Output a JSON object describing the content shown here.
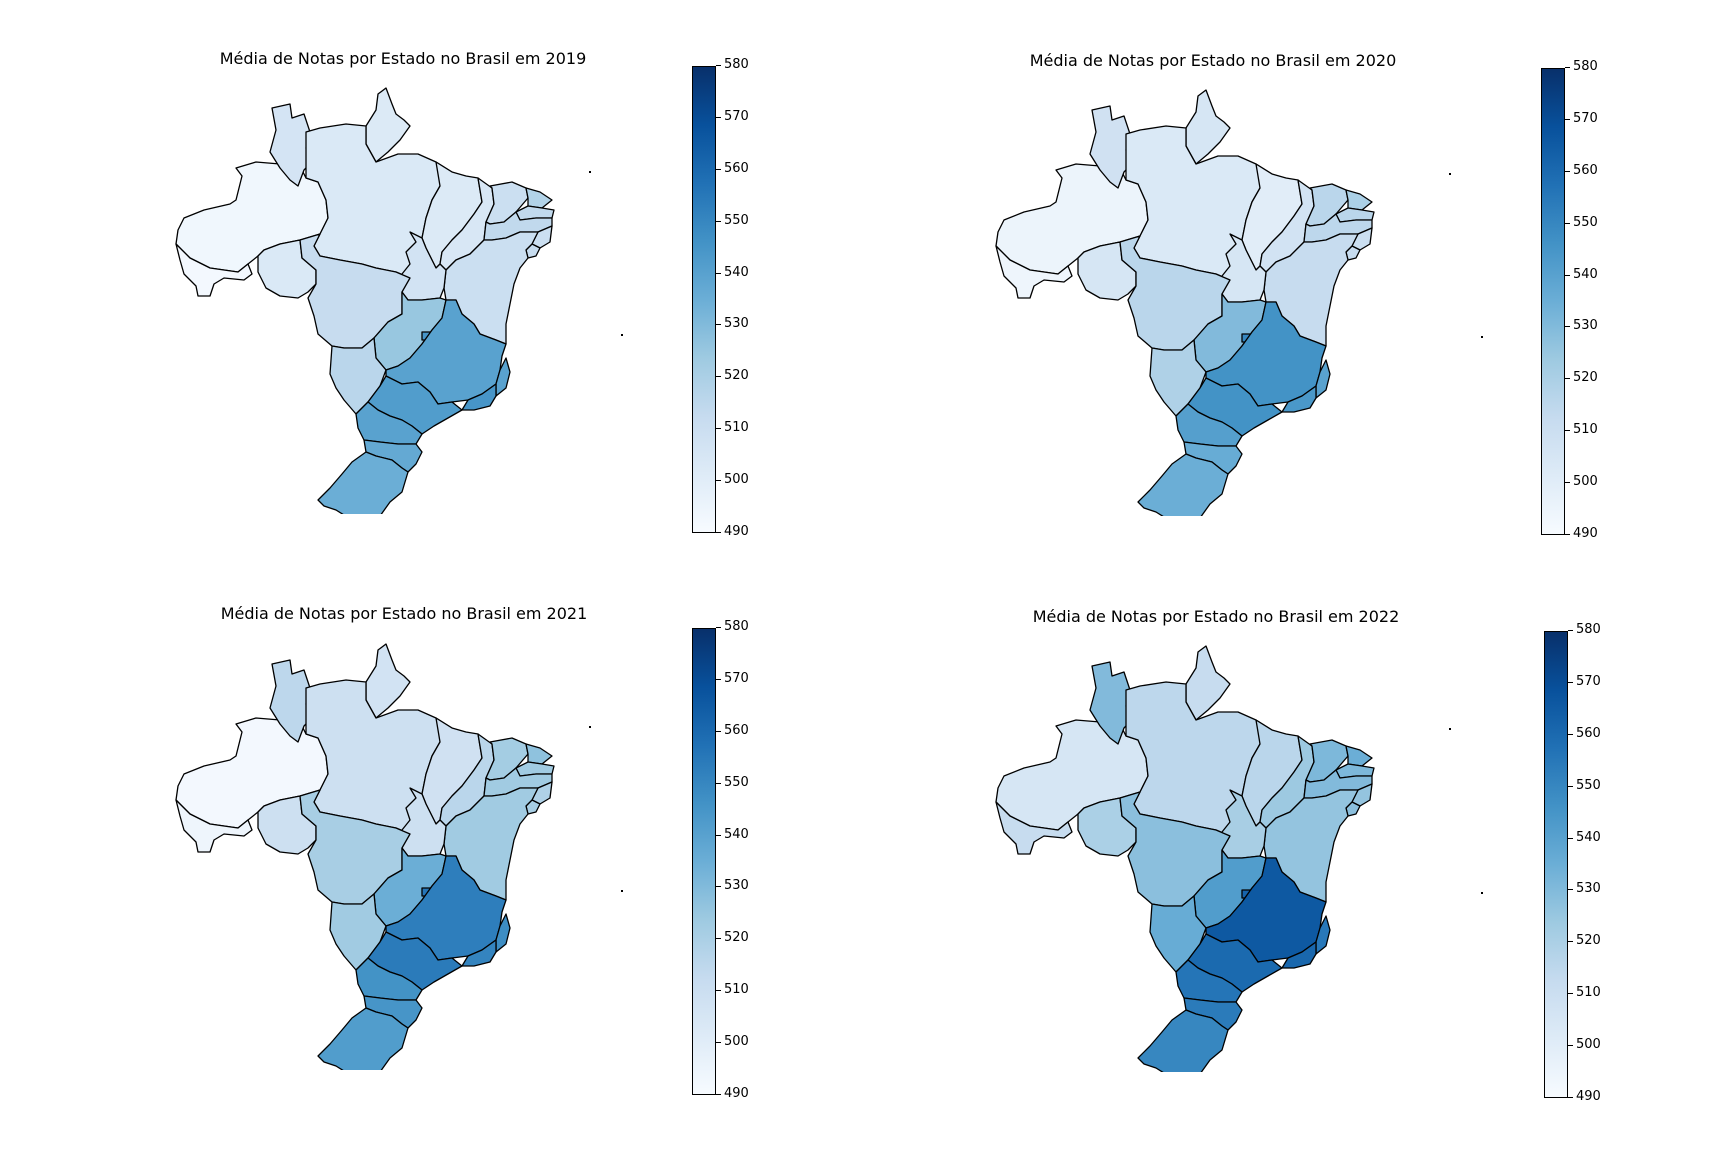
{
  "colormap": {
    "name": "Blues",
    "stops": [
      "#f7fbff",
      "#deebf7",
      "#c6dbef",
      "#9ecae1",
      "#6baed6",
      "#4292c6",
      "#2171b5",
      "#08519c",
      "#08306b"
    ],
    "vmin": 490,
    "vmax": 580,
    "ticks": [
      "490",
      "500",
      "510",
      "520",
      "530",
      "540",
      "550",
      "560",
      "570",
      "580"
    ]
  },
  "panels": [
    {
      "year": "2019",
      "title": "Média de Notas por Estado no Brasil em 2019",
      "states": {
        "AC": 492,
        "AM": 493,
        "RR": 506,
        "PA": 503,
        "AP": 502,
        "TO": 507,
        "MA": 502,
        "PI": 504,
        "CE": 510,
        "RN": 518,
        "PB": 514,
        "PE": 514,
        "AL": 510,
        "SE": 512,
        "BA": 510,
        "RO": 503,
        "MT": 512,
        "MS": 516,
        "GO": 525,
        "DF": 545,
        "MG": 540,
        "ES": 540,
        "RJ": 545,
        "SP": 542,
        "PR": 540,
        "SC": 537,
        "RS": 535
      }
    },
    {
      "year": "2020",
      "title": "Média de Notas por Estado no Brasil em 2020",
      "states": {
        "AC": 494,
        "AM": 495,
        "RR": 508,
        "PA": 503,
        "AP": 505,
        "TO": 505,
        "MA": 500,
        "PI": 507,
        "CE": 516,
        "RN": 520,
        "PB": 516,
        "PE": 515,
        "AL": 510,
        "SE": 512,
        "BA": 512,
        "RO": 505,
        "MT": 516,
        "MS": 519,
        "GO": 530,
        "DF": 550,
        "MG": 546,
        "ES": 540,
        "RJ": 544,
        "SP": 546,
        "PR": 541,
        "SC": 536,
        "RS": 535
      }
    },
    {
      "year": "2021",
      "title": "Média de Notas por Estado no Brasil em 2021",
      "states": {
        "AC": 494,
        "AM": 492,
        "RR": 515,
        "PA": 509,
        "AP": 507,
        "TO": 509,
        "MA": 508,
        "PI": 516,
        "CE": 522,
        "RN": 527,
        "PB": 523,
        "PE": 523,
        "AL": 519,
        "SE": 521,
        "BA": 523,
        "RO": 509,
        "MT": 521,
        "MS": 523,
        "GO": 535,
        "DF": 556,
        "MG": 553,
        "ES": 548,
        "RJ": 551,
        "SP": 554,
        "PR": 546,
        "SC": 545,
        "RS": 542
      }
    },
    {
      "year": "2022",
      "title": "Média de Notas por Estado no Brasil em 2022",
      "states": {
        "AC": 512,
        "AM": 505,
        "RR": 530,
        "PA": 515,
        "AP": 512,
        "TO": 521,
        "MA": 516,
        "PI": 524,
        "CE": 531,
        "RN": 535,
        "PB": 531,
        "PE": 530,
        "AL": 526,
        "SE": 528,
        "BA": 526,
        "RO": 520,
        "MT": 528,
        "MS": 536,
        "GO": 542,
        "DF": 562,
        "MG": 566,
        "ES": 555,
        "RJ": 561,
        "SP": 560,
        "PR": 556,
        "SC": 554,
        "RS": 550
      }
    }
  ]
}
